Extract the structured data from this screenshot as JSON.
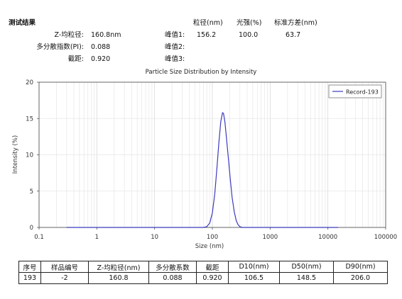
{
  "header": {
    "title": "测试结果",
    "col_headers": [
      "粒径(nm)",
      "光强(%)",
      "标准方差(nm)"
    ],
    "left_rows": [
      {
        "label": "Z-均粒径:",
        "value": "160.8nm"
      },
      {
        "label": "多分散指数(PI):",
        "value": "0.088"
      },
      {
        "label": "截距:",
        "value": "0.920"
      }
    ],
    "peaks": [
      {
        "label": "峰值1:",
        "size": "156.2",
        "intensity": "100.0",
        "std": "63.7"
      },
      {
        "label": "峰值2:",
        "size": "",
        "intensity": "",
        "std": ""
      },
      {
        "label": "峰值3:",
        "size": "",
        "intensity": "",
        "std": ""
      }
    ]
  },
  "chart_data": {
    "type": "line",
    "title": "Particle Size Distribution by Intensity",
    "xlabel": "Size (nm)",
    "ylabel": "Intensity (%)",
    "xscale": "log",
    "xlim": [
      0.1,
      100000
    ],
    "ylim": [
      0,
      20
    ],
    "xticks": [
      "0.1",
      "1",
      "10",
      "100",
      "1000",
      "10000",
      "100000"
    ],
    "yticks": [
      "0",
      "5",
      "10",
      "15",
      "20"
    ],
    "grid": true,
    "legend_position": "top-right",
    "series": [
      {
        "name": "Record-193",
        "color": "#3b3bbf",
        "x": [
          0.3,
          1,
          10,
          50,
          70,
          80,
          90,
          100,
          110,
          120,
          130,
          140,
          150,
          156,
          165,
          175,
          190,
          205,
          220,
          240,
          260,
          280,
          300,
          330,
          360,
          1000,
          10000,
          15000
        ],
        "y": [
          0,
          0,
          0,
          0,
          0,
          0.1,
          0.6,
          2.0,
          4.6,
          8.2,
          11.8,
          14.6,
          15.8,
          15.7,
          14.5,
          12.4,
          9.4,
          6.5,
          4.1,
          2.1,
          0.9,
          0.35,
          0.1,
          0,
          0,
          0,
          0,
          0
        ]
      }
    ]
  },
  "table": {
    "headers": [
      "序号",
      "样品编号",
      "Z-均粒径(nm)",
      "多分散系数",
      "截距",
      "D10(nm)",
      "D50(nm)",
      "D90(nm)"
    ],
    "rows": [
      [
        "193",
        "-2",
        "160.8",
        "0.088",
        "0.920",
        "106.5",
        "148.5",
        "206.0"
      ]
    ]
  }
}
